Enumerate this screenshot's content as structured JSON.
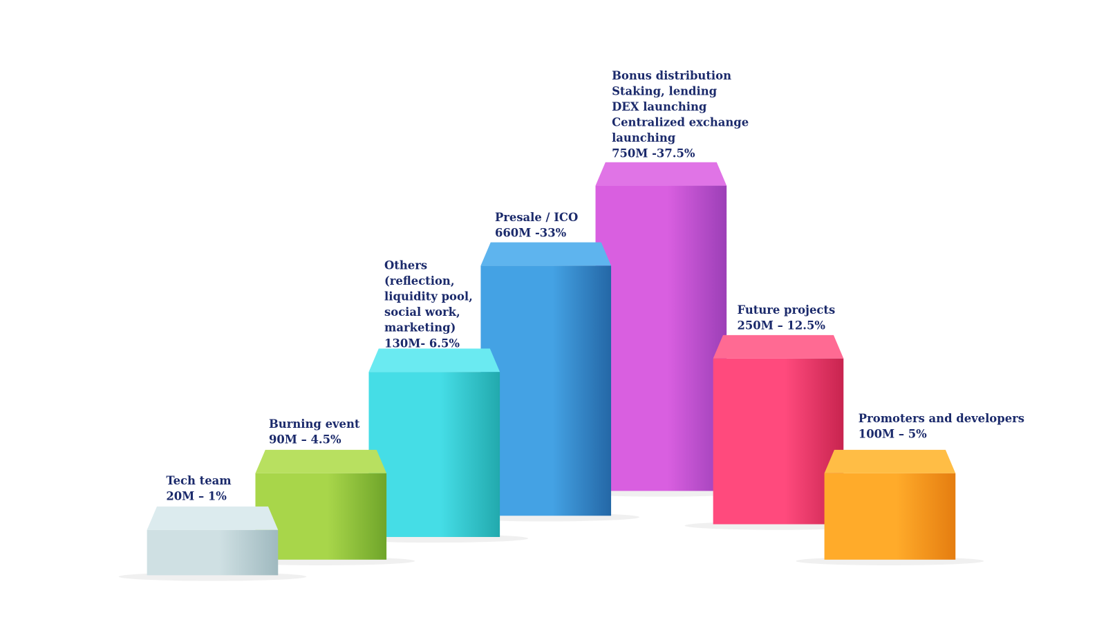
{
  "pillars": [
    {
      "label_lines": [
        "Tech team",
        "20M – 1%"
      ]
    },
    {
      "label_lines": [
        "Burning event",
        "90M – 4.5%"
      ]
    },
    {
      "label_lines": [
        "Others",
        "(reflection,",
        "liquidity pool,",
        "social work,",
        "marketing)",
        "130M- 6.5%"
      ]
    },
    {
      "label_lines": [
        "Presale / ICO",
        "660M -33%"
      ]
    },
    {
      "label_lines": [
        "Bonus distribution",
        "Staking, lending",
        "DEX launching",
        "Centralized exchange",
        "launching",
        "750M -37.5%"
      ]
    },
    {
      "label_lines": [
        "Future projects",
        "250M – 12.5%"
      ]
    },
    {
      "label_lines": [
        "Promoters and developers",
        "100M – 5%"
      ]
    }
  ]
}
